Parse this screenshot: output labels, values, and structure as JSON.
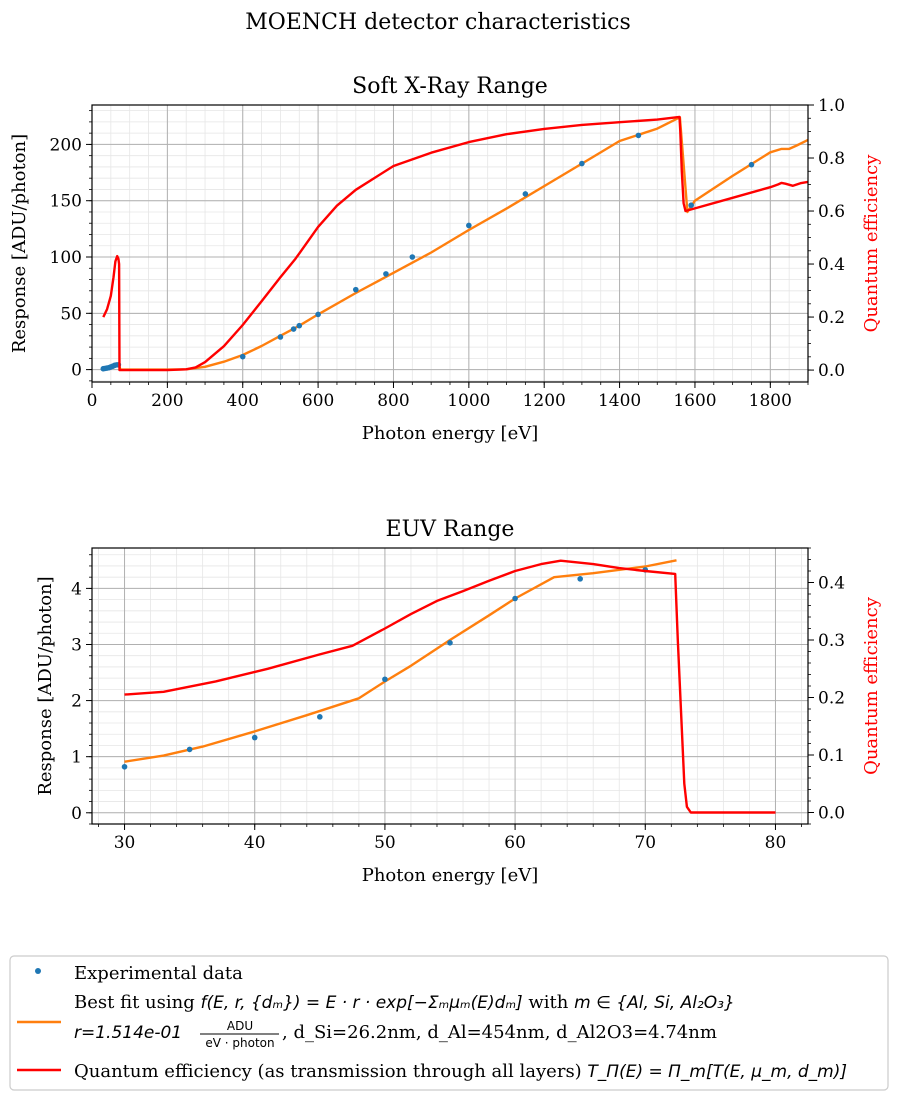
{
  "figure": {
    "suptitle": "MOENCH detector characteristics"
  },
  "legend": {
    "experimental": "Experimental data",
    "fit_line1_prefix": "Best fit using ",
    "fit_formula": "f(E, r, {dₘ}) = E · r · exp[−Σₘμₘ(E)dₘ]",
    "fit_with": " with ",
    "fit_set": "m ∈ {Al, Si, Al₂O₃}",
    "fit_line2_r": "r=1.514e-01",
    "fit_unit_num": "ADU",
    "fit_unit_den": "eV · photon",
    "fit_line2_rest": ", d_Si=26.2nm, d_Al=454nm, d_Al2O3=4.74nm",
    "qe_prefix": "Quantum efficiency (as transmission through all layers) ",
    "qe_formula": "T_Π(E) = Π_m[T(E, μ_m, d_m)]"
  },
  "colors": {
    "experimental": "#1f77b4",
    "fit": "#ff7f0e",
    "qe": "#ff0000",
    "grid_major": "#b0b0b0",
    "grid_minor": "#e6e6e6"
  },
  "chart_data": [
    {
      "type": "line",
      "title": "Soft X-Ray Range",
      "xlabel": "Photon energy [eV]",
      "ylabel": "Response [ADU/photon]",
      "ylabel_right": "Quantum efficiency",
      "xlim": [
        0,
        1900
      ],
      "ylim": [
        -11,
        235
      ],
      "ylim_right": [
        -0.045,
        1.0
      ],
      "xticks": [
        0,
        200,
        400,
        600,
        800,
        1000,
        1200,
        1400,
        1600,
        1800
      ],
      "yticks": [
        0,
        50,
        100,
        150,
        200
      ],
      "yticks_right": [
        0.0,
        0.2,
        0.4,
        0.6,
        0.8,
        1.0
      ],
      "grid": true,
      "series": [
        {
          "name": "Experimental data",
          "kind": "scatter",
          "axis": "left",
          "x": [
            30,
            35,
            40,
            45,
            50,
            55,
            60,
            65,
            70,
            400,
            500,
            535,
            550,
            600,
            700,
            780,
            850,
            1000,
            1150,
            1300,
            1450,
            1590,
            1750
          ],
          "y": [
            0.8,
            1.1,
            1.4,
            1.7,
            2.4,
            3.0,
            3.8,
            4.2,
            4.3,
            11.5,
            29,
            36,
            39,
            49,
            71,
            85,
            100,
            128,
            156,
            183,
            208,
            146,
            182
          ]
        },
        {
          "name": "Best fit",
          "kind": "line",
          "axis": "left",
          "x": [
            30,
            60,
            72,
            75,
            150,
            200,
            250,
            300,
            350,
            400,
            450,
            500,
            550,
            600,
            700,
            800,
            900,
            1000,
            1100,
            1200,
            1300,
            1400,
            1500,
            1559,
            1560,
            1580,
            1600,
            1700,
            1800,
            1830,
            1850,
            1870,
            1900
          ],
          "y": [
            0.9,
            3.8,
            4.5,
            0,
            0,
            0,
            0.3,
            2.5,
            7,
            13,
            21,
            30,
            39,
            49,
            68,
            86,
            104,
            124,
            143,
            163,
            183,
            203,
            214,
            224,
            224,
            140,
            150,
            172,
            193,
            196,
            196,
            199,
            204
          ]
        },
        {
          "name": "Quantum efficiency",
          "kind": "line",
          "axis": "right",
          "x": [
            30,
            40,
            50,
            57,
            62,
            67,
            70,
            72,
            73,
            75,
            100,
            150,
            200,
            250,
            275,
            300,
            350,
            400,
            450,
            500,
            540,
            550,
            600,
            650,
            700,
            800,
            900,
            1000,
            1100,
            1200,
            1300,
            1400,
            1500,
            1559,
            1561,
            1565,
            1570,
            1575,
            1600,
            1700,
            1800,
            1820,
            1830,
            1840,
            1860,
            1880,
            1900
          ],
          "y": [
            0.2,
            0.23,
            0.28,
            0.35,
            0.41,
            0.43,
            0.42,
            0.4,
            0.0,
            0.0,
            0.0,
            0.0,
            0.0,
            0.003,
            0.01,
            0.03,
            0.09,
            0.17,
            0.26,
            0.35,
            0.42,
            0.44,
            0.54,
            0.62,
            0.68,
            0.77,
            0.82,
            0.86,
            0.89,
            0.91,
            0.925,
            0.935,
            0.945,
            0.955,
            0.9,
            0.75,
            0.63,
            0.6,
            0.61,
            0.65,
            0.69,
            0.7,
            0.706,
            0.703,
            0.695,
            0.705,
            0.71
          ]
        }
      ]
    },
    {
      "type": "line",
      "title": "EUV Range",
      "xlabel": "Photon energy [eV]",
      "ylabel": "Response [ADU/photon]",
      "ylabel_right": "Quantum efficiency",
      "xlim": [
        27.5,
        82.5
      ],
      "ylim": [
        -0.2,
        4.72
      ],
      "ylim_right": [
        -0.02,
        0.46
      ],
      "xticks": [
        30,
        40,
        50,
        60,
        70,
        80
      ],
      "yticks": [
        0,
        1,
        2,
        3,
        4
      ],
      "yticks_right": [
        0.0,
        0.1,
        0.2,
        0.3,
        0.4
      ],
      "grid": true,
      "series": [
        {
          "name": "Experimental data",
          "kind": "scatter",
          "axis": "left",
          "x": [
            30,
            35,
            40,
            45,
            50,
            55,
            60,
            65,
            70
          ],
          "y": [
            0.82,
            1.13,
            1.34,
            1.71,
            2.38,
            3.03,
            3.82,
            4.17,
            4.33
          ]
        },
        {
          "name": "Best fit",
          "kind": "line",
          "axis": "left",
          "x": [
            30,
            33,
            36,
            40,
            44,
            48,
            50,
            52,
            55,
            58,
            60,
            63,
            66,
            70,
            72.4
          ],
          "y": [
            0.91,
            1.02,
            1.18,
            1.45,
            1.74,
            2.04,
            2.34,
            2.62,
            3.08,
            3.52,
            3.82,
            4.2,
            4.27,
            4.39,
            4.5
          ]
        },
        {
          "name": "Quantum efficiency",
          "kind": "line",
          "axis": "right",
          "x": [
            30,
            33,
            37,
            41,
            45,
            47.5,
            50,
            52,
            54,
            56,
            58,
            60,
            62,
            63.5,
            66,
            68,
            70,
            72.3,
            72.5,
            72.8,
            73.0,
            73.2,
            73.5,
            74,
            80
          ],
          "y": [
            0.205,
            0.21,
            0.228,
            0.25,
            0.275,
            0.29,
            0.32,
            0.345,
            0.368,
            0.385,
            0.403,
            0.42,
            0.432,
            0.438,
            0.432,
            0.425,
            0.42,
            0.415,
            0.3,
            0.15,
            0.05,
            0.01,
            0.0,
            0.0,
            0.0
          ]
        }
      ]
    }
  ]
}
